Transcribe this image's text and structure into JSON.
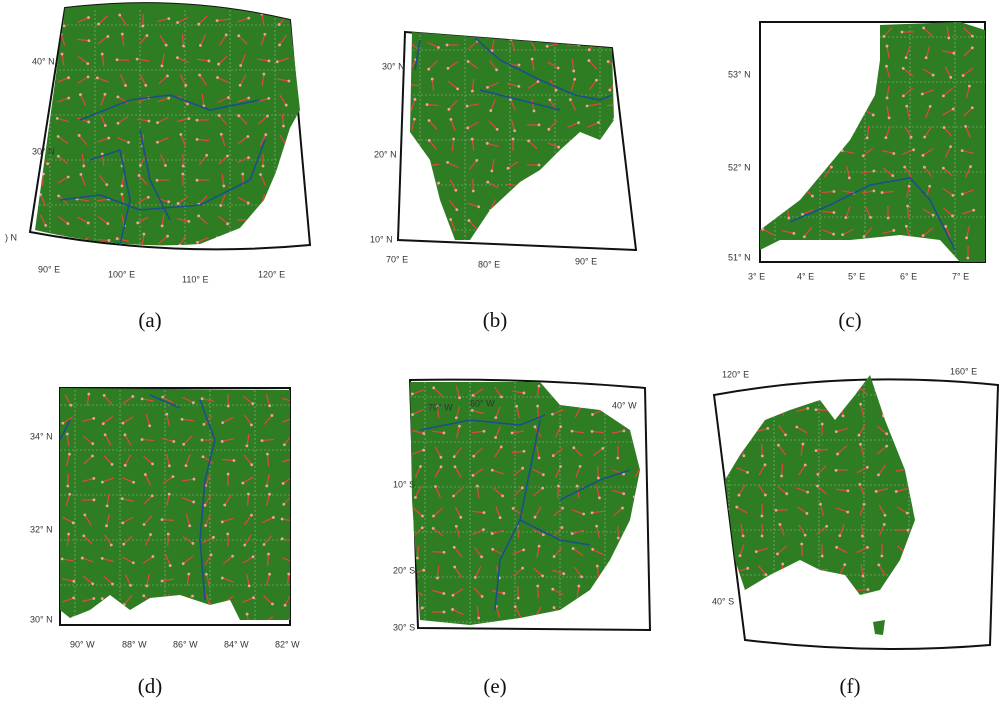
{
  "panels": [
    {
      "caption": "(a)",
      "lat_labels": [
        "40° N",
        "30° N",
        ") N"
      ],
      "lon_labels": [
        "90° E",
        "100° E",
        "110° E",
        "120° E"
      ]
    },
    {
      "caption": "(b)",
      "lat_labels": [
        "30° N",
        "20° N",
        "10° N"
      ],
      "lon_labels": [
        "70° E",
        "80° E",
        "90° E"
      ]
    },
    {
      "caption": "(c)",
      "lat_labels": [
        "53° N",
        "52° N",
        "51° N"
      ],
      "lon_labels": [
        "3° E",
        "4° E",
        "5° E",
        "6° E",
        "7° E"
      ]
    },
    {
      "caption": "(d)",
      "lat_labels": [
        "34° N",
        "32° N",
        "30° N"
      ],
      "lon_labels": [
        "90° W",
        "88° W",
        "86° W",
        "84° W",
        "82° W"
      ]
    },
    {
      "caption": "(e)",
      "lat_labels": [
        "10° S",
        "20° S",
        "30° S"
      ],
      "lon_labels": [
        "70° W",
        "60° W",
        "40° W"
      ]
    },
    {
      "caption": "(f)",
      "lat_labels": [
        "40° S"
      ],
      "lon_labels": [
        "120° E",
        "160° E"
      ]
    }
  ]
}
